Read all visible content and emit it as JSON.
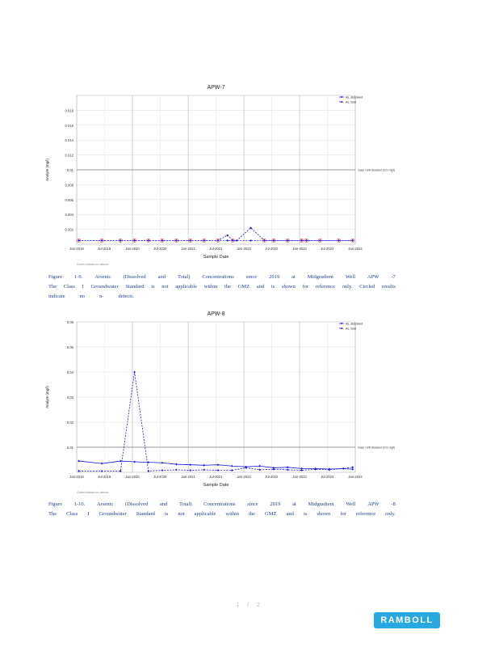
{
  "chart_data": [
    {
      "type": "line",
      "title": "APW-7",
      "xlabel": "Sample Date",
      "ylabel": "Analyte (mg/l)",
      "x_ticks": [
        "Jan-2019",
        "Jul-2019",
        "Jan-2020",
        "Jul-2020",
        "Jan-2021",
        "Jul-2021",
        "Jan-2022",
        "Jul-2022",
        "Jan-2023",
        "Jul-2023",
        "Jan-2024"
      ],
      "xlim": [
        "2019-01-01",
        "2024-01-01"
      ],
      "ylim": [
        0,
        0.02
      ],
      "y_ticks": [
        0.002,
        0.004,
        0.006,
        0.008,
        0.01,
        0.012,
        0.014,
        0.016,
        0.018
      ],
      "y_tick_labels": [
        "0.002",
        "0.004",
        "0.006",
        "0.008",
        "0.01",
        "0.012",
        "0.014",
        "0.016",
        "0.018"
      ],
      "reference_line": {
        "value": 0.01,
        "label": "Class I GW Standard (0.01 mg/l)"
      },
      "legend": [
        "As, dissolved",
        "As, total"
      ],
      "legend_position": "top-right",
      "grid": true,
      "series": [
        {
          "name": "As, dissolved",
          "style": "dashed",
          "marker": "diamond",
          "color": "#1a1adb",
          "x": [
            "2019-01-15",
            "2019-06-15",
            "2019-10-15",
            "2020-01-15",
            "2020-04-15",
            "2020-07-15",
            "2020-10-15",
            "2021-01-15",
            "2021-04-15",
            "2021-07-15",
            "2021-09-15",
            "2021-10-20",
            "2021-11-15",
            "2022-02-15",
            "2022-05-15",
            "2022-07-15",
            "2022-10-15",
            "2023-01-15",
            "2023-02-15",
            "2023-05-15",
            "2023-09-15",
            "2023-12-15"
          ],
          "y": [
            0.0005,
            0.0005,
            0.0005,
            0.0005,
            0.0005,
            0.0005,
            0.0005,
            0.0005,
            0.0005,
            0.0005,
            0.0005,
            0.0005,
            0.0005,
            0.0005,
            0.0005,
            0.0005,
            0.0005,
            0.0005,
            0.0005,
            0.0005,
            0.0005,
            0.0005
          ]
        },
        {
          "name": "As, total",
          "style": "dashed",
          "marker": "diamond",
          "color": "#1a1adb",
          "x": [
            "2019-01-15",
            "2019-06-15",
            "2019-10-15",
            "2020-01-15",
            "2020-04-15",
            "2020-07-15",
            "2020-10-15",
            "2021-01-15",
            "2021-04-15",
            "2021-07-15",
            "2021-09-15",
            "2021-10-20",
            "2021-11-15",
            "2022-02-15",
            "2022-05-15",
            "2022-07-15",
            "2022-10-15",
            "2023-01-15",
            "2023-02-15",
            "2023-05-15",
            "2023-09-15",
            "2023-12-15"
          ],
          "y": [
            0.0005,
            0.0005,
            0.0005,
            0.0005,
            0.0005,
            0.0005,
            0.0005,
            0.0005,
            0.0005,
            0.0005,
            0.0012,
            0.0005,
            0.0005,
            0.0022,
            0.0005,
            0.0005,
            0.0005,
            0.0005,
            0.0005,
            0.0005,
            0.0005,
            0.0005
          ]
        }
      ],
      "nondetect_markers": {
        "color": "#e04040",
        "x": [
          "2019-01-15",
          "2019-06-15",
          "2019-10-15",
          "2020-01-15",
          "2020-04-15",
          "2020-07-15",
          "2020-10-15",
          "2021-01-15",
          "2021-04-15",
          "2021-07-15",
          "2021-10-20",
          "2022-05-15",
          "2022-07-15",
          "2022-10-15",
          "2023-01-15",
          "2023-02-15",
          "2023-05-15",
          "2023-09-15",
          "2023-12-15"
        ]
      },
      "footnote": "Circles indicate non-detects"
    },
    {
      "type": "line",
      "title": "APW-8",
      "xlabel": "Sample Date",
      "ylabel": "Analyte (mg/l)",
      "x_ticks": [
        "Jan-2019",
        "Jul-2019",
        "Jan-2020",
        "Jul-2020",
        "Jan-2021",
        "Jul-2021",
        "Jan-2022",
        "Jul-2022",
        "Jan-2023",
        "Jul-2023",
        "Jan-2024"
      ],
      "xlim": [
        "2019-01-01",
        "2024-01-01"
      ],
      "ylim": [
        0,
        0.06
      ],
      "y_ticks": [
        0.01,
        0.02,
        0.03,
        0.04,
        0.05,
        0.06
      ],
      "y_tick_labels": [
        "0.01",
        "0.02",
        "0.03",
        "0.04",
        "0.05",
        "0.06"
      ],
      "reference_line": {
        "value": 0.01,
        "label": "Class I GW Standard (0.01 mg/l)"
      },
      "legend": [
        "As, dissolved",
        "As, total"
      ],
      "legend_position": "top-right",
      "grid": true,
      "series": [
        {
          "name": "As, dissolved",
          "style": "solid",
          "marker": "diamond",
          "color": "#1a1adb",
          "x": [
            "2019-01-15",
            "2019-06-15",
            "2019-10-15",
            "2020-01-15",
            "2020-04-15",
            "2020-07-15",
            "2020-10-15",
            "2021-01-15",
            "2021-04-15",
            "2021-07-15",
            "2021-10-15",
            "2022-01-15",
            "2022-04-15",
            "2022-07-15",
            "2022-10-15",
            "2023-01-15",
            "2023-04-15",
            "2023-07-15",
            "2023-10-15",
            "2023-12-15"
          ],
          "y": [
            0.0045,
            0.0035,
            0.0045,
            0.0042,
            0.004,
            0.0038,
            0.0032,
            0.003,
            0.0028,
            0.003,
            0.0025,
            0.0022,
            0.0025,
            0.0018,
            0.002,
            0.0015,
            0.0015,
            0.0013,
            0.0015,
            0.0012
          ]
        },
        {
          "name": "As, total",
          "style": "dashed",
          "marker": "diamond",
          "color": "#1a1adb",
          "x": [
            "2019-01-15",
            "2019-06-15",
            "2019-10-15",
            "2020-01-15",
            "2020-04-15",
            "2020-07-15",
            "2020-10-15",
            "2021-01-15",
            "2021-04-15",
            "2021-07-15",
            "2021-10-15",
            "2022-01-15",
            "2022-04-15",
            "2022-07-15",
            "2022-10-15",
            "2023-01-15",
            "2023-04-15",
            "2023-07-15",
            "2023-10-15",
            "2023-12-15"
          ],
          "y": [
            0.0005,
            0.0005,
            0.0005,
            0.04,
            0.0005,
            0.0008,
            0.001,
            0.0008,
            0.001,
            0.0008,
            0.0008,
            0.0018,
            0.001,
            0.0012,
            0.001,
            0.0008,
            0.0012,
            0.001,
            0.0015,
            0.002
          ]
        }
      ],
      "nondetect_markers": {
        "color": "#e04040",
        "x": []
      },
      "footnote": "Circles indicate non-detects"
    }
  ],
  "captions": [
    {
      "line1": [
        "Figure",
        "1-9.",
        "Arsenic",
        "(Dissolved",
        "and",
        "Total)",
        "Concentrations",
        "since",
        "2019",
        "at",
        "Midgradient",
        "Well",
        "APW",
        "-7"
      ],
      "line2": [
        "The",
        "Class",
        "I",
        "Groundwater",
        "Standard",
        "is",
        "not",
        "applicable",
        "within",
        "the",
        "GMZ",
        "and",
        "is",
        "shown",
        "for",
        "reference",
        "only.",
        "Circled",
        "results"
      ],
      "line3": [
        "indicate",
        "no",
        "n-",
        "detects."
      ]
    },
    {
      "line1": [
        "Figure",
        "1-10.",
        "Arsenic",
        "(Dissolved",
        "and",
        "Total)",
        "Concentrations",
        "since",
        "2019",
        "at",
        "Midgradient",
        "Well",
        "APW",
        "-8"
      ],
      "line2": [
        "The",
        "Class",
        "I",
        "Groundwater",
        "Standard",
        "is",
        "not",
        "applicable",
        "within",
        "the",
        "GMZ",
        "and",
        "is",
        "shown",
        "for",
        "reference",
        "only."
      ]
    }
  ],
  "page_number": "1 / 2",
  "logo_text": "RAMBOLL"
}
